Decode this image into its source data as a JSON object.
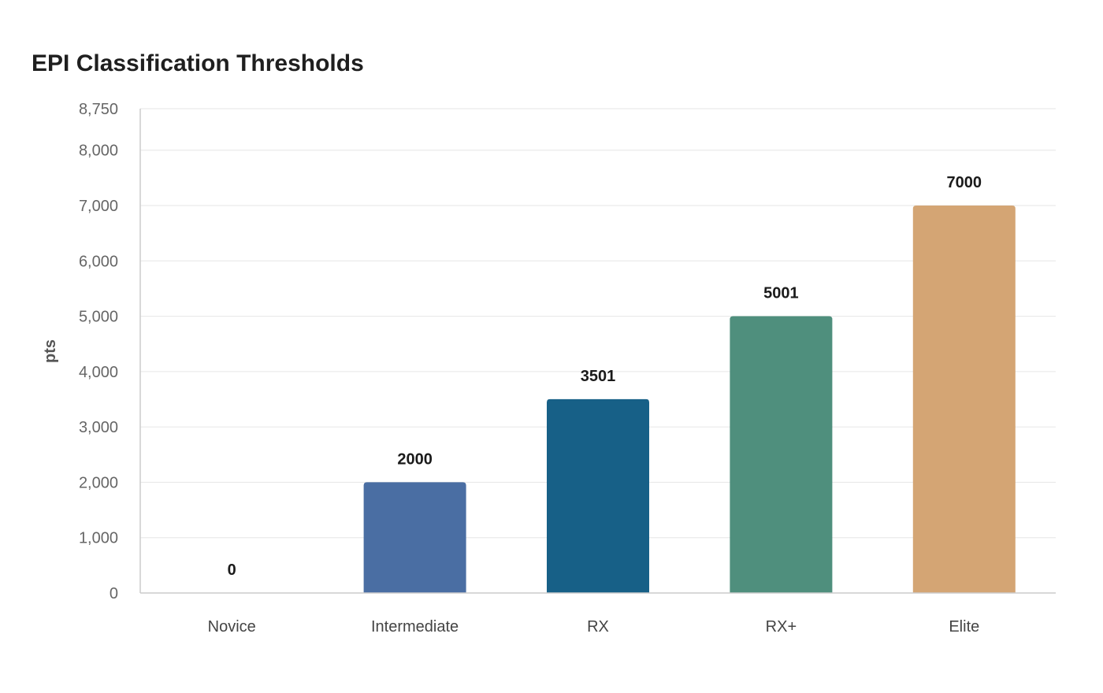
{
  "chart_data": {
    "type": "bar",
    "title": "EPI Classification Thresholds",
    "xlabel": "",
    "ylabel": "pts",
    "categories": [
      "Novice",
      "Intermediate",
      "RX",
      "RX+",
      "Elite"
    ],
    "values": [
      0,
      2000,
      3501,
      5001,
      7000
    ],
    "data_labels": [
      "0",
      "2000",
      "3501",
      "5001",
      "7000"
    ],
    "colors": [
      "#4a6ea3",
      "#4a6ea3",
      "#176087",
      "#4f8f7d",
      "#d4a574"
    ],
    "ylim": [
      0,
      8750
    ],
    "yticks": [
      0,
      1000,
      2000,
      3000,
      4000,
      5000,
      6000,
      7000,
      8000,
      8750
    ],
    "ytick_labels": [
      "0",
      "1,000",
      "2,000",
      "3,000",
      "4,000",
      "5,000",
      "6,000",
      "7,000",
      "8,000",
      "8,750"
    ],
    "grid": true,
    "legend": "none"
  }
}
